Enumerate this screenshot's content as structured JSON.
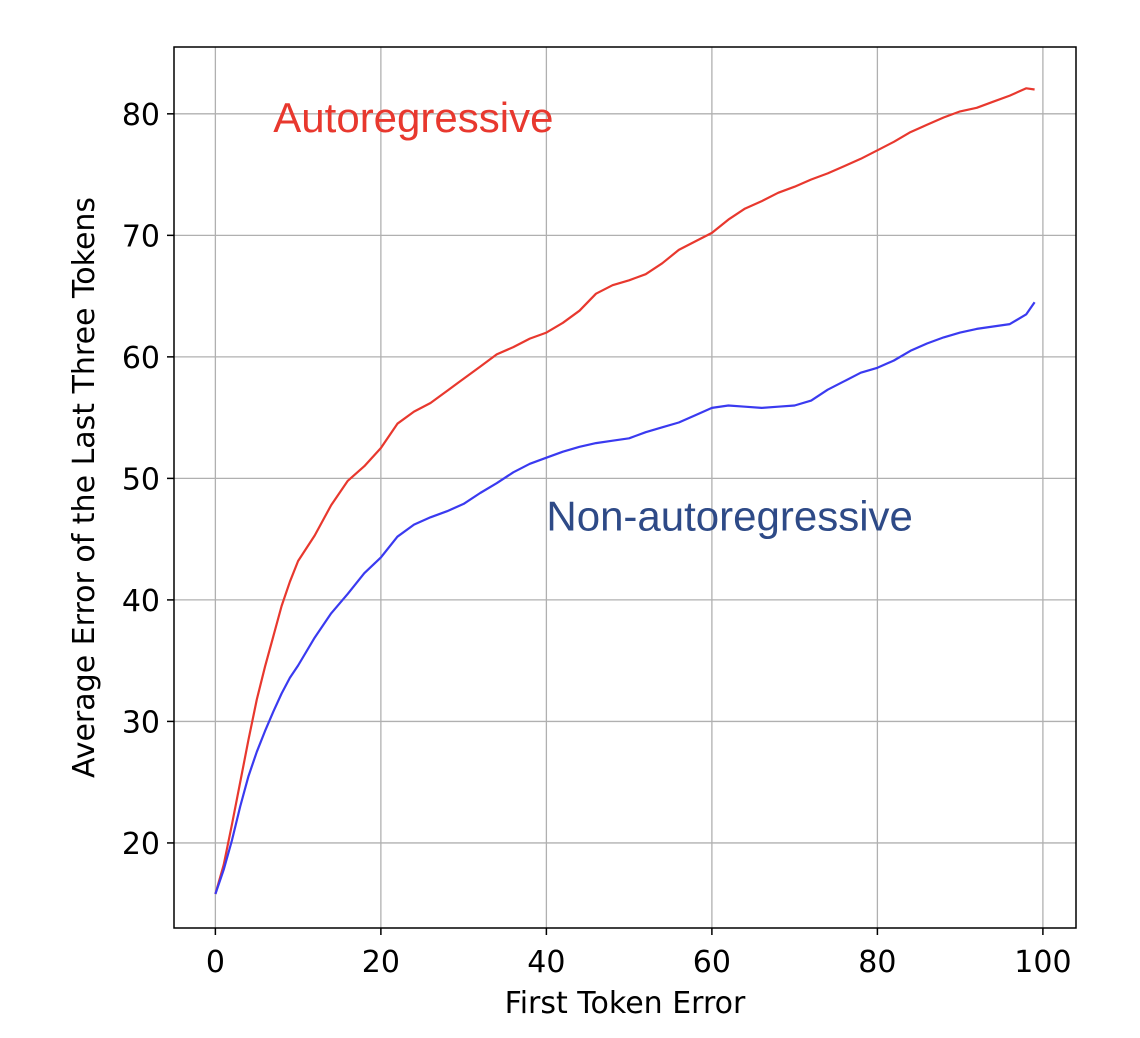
{
  "chart_data": {
    "type": "line",
    "title": "",
    "xlabel": "First Token Error",
    "ylabel": "Average Error of the Last Three Tokens",
    "xlim": [
      -5,
      104
    ],
    "ylim": [
      13,
      85.5
    ],
    "xticks": [
      0,
      20,
      40,
      60,
      80,
      100
    ],
    "yticks": [
      20,
      30,
      40,
      50,
      60,
      70,
      80
    ],
    "grid": true,
    "legend": "none",
    "annotations": [
      {
        "text": "Autoregressive",
        "color": "#e8382e",
        "x": 7,
        "y": 78.5
      },
      {
        "text": "Non-autoregressive",
        "color": "#2e4a87",
        "x": 40,
        "y": 45.7
      }
    ],
    "series": [
      {
        "name": "Autoregressive",
        "color": "#e8382e",
        "x": [
          0,
          1,
          2,
          3,
          4,
          5,
          6,
          7,
          8,
          9,
          10,
          12,
          14,
          16,
          18,
          20,
          22,
          24,
          26,
          28,
          30,
          32,
          34,
          36,
          38,
          40,
          42,
          44,
          46,
          48,
          50,
          52,
          54,
          56,
          58,
          60,
          62,
          64,
          66,
          68,
          70,
          72,
          74,
          76,
          78,
          80,
          82,
          84,
          86,
          88,
          90,
          92,
          94,
          96,
          98,
          99
        ],
        "values": [
          15.8,
          18.2,
          21.5,
          25.0,
          28.5,
          31.8,
          34.5,
          37.0,
          39.5,
          41.5,
          43.2,
          45.3,
          47.8,
          49.8,
          51.0,
          52.5,
          54.5,
          55.5,
          56.2,
          57.2,
          58.2,
          59.2,
          60.2,
          60.8,
          61.5,
          62.0,
          62.8,
          63.8,
          65.2,
          65.9,
          66.3,
          66.8,
          67.7,
          68.8,
          69.5,
          70.2,
          71.3,
          72.2,
          72.8,
          73.5,
          74.0,
          74.6,
          75.1,
          75.7,
          76.3,
          77.0,
          77.7,
          78.5,
          79.1,
          79.7,
          80.2,
          80.5,
          81.0,
          81.5,
          82.1,
          82.0
        ]
      },
      {
        "name": "Non-autoregressive",
        "color": "#3a3af0",
        "x": [
          0,
          1,
          2,
          3,
          4,
          5,
          6,
          7,
          8,
          9,
          10,
          12,
          14,
          16,
          18,
          20,
          22,
          24,
          26,
          28,
          30,
          32,
          34,
          36,
          38,
          40,
          42,
          44,
          46,
          48,
          50,
          52,
          54,
          56,
          58,
          60,
          62,
          64,
          66,
          68,
          70,
          72,
          74,
          76,
          78,
          80,
          82,
          84,
          86,
          88,
          90,
          92,
          94,
          96,
          98,
          99
        ],
        "values": [
          15.8,
          17.8,
          20.2,
          23.0,
          25.5,
          27.5,
          29.2,
          30.8,
          32.3,
          33.6,
          34.6,
          36.9,
          38.9,
          40.5,
          42.2,
          43.5,
          45.2,
          46.2,
          46.8,
          47.3,
          47.9,
          48.8,
          49.6,
          50.5,
          51.2,
          51.7,
          52.2,
          52.6,
          52.9,
          53.1,
          53.3,
          53.8,
          54.2,
          54.6,
          55.2,
          55.8,
          56.0,
          55.9,
          55.8,
          55.9,
          56.0,
          56.4,
          57.3,
          58.0,
          58.7,
          59.1,
          59.7,
          60.5,
          61.1,
          61.6,
          62.0,
          62.3,
          62.5,
          62.7,
          63.5,
          64.5
        ]
      }
    ]
  }
}
